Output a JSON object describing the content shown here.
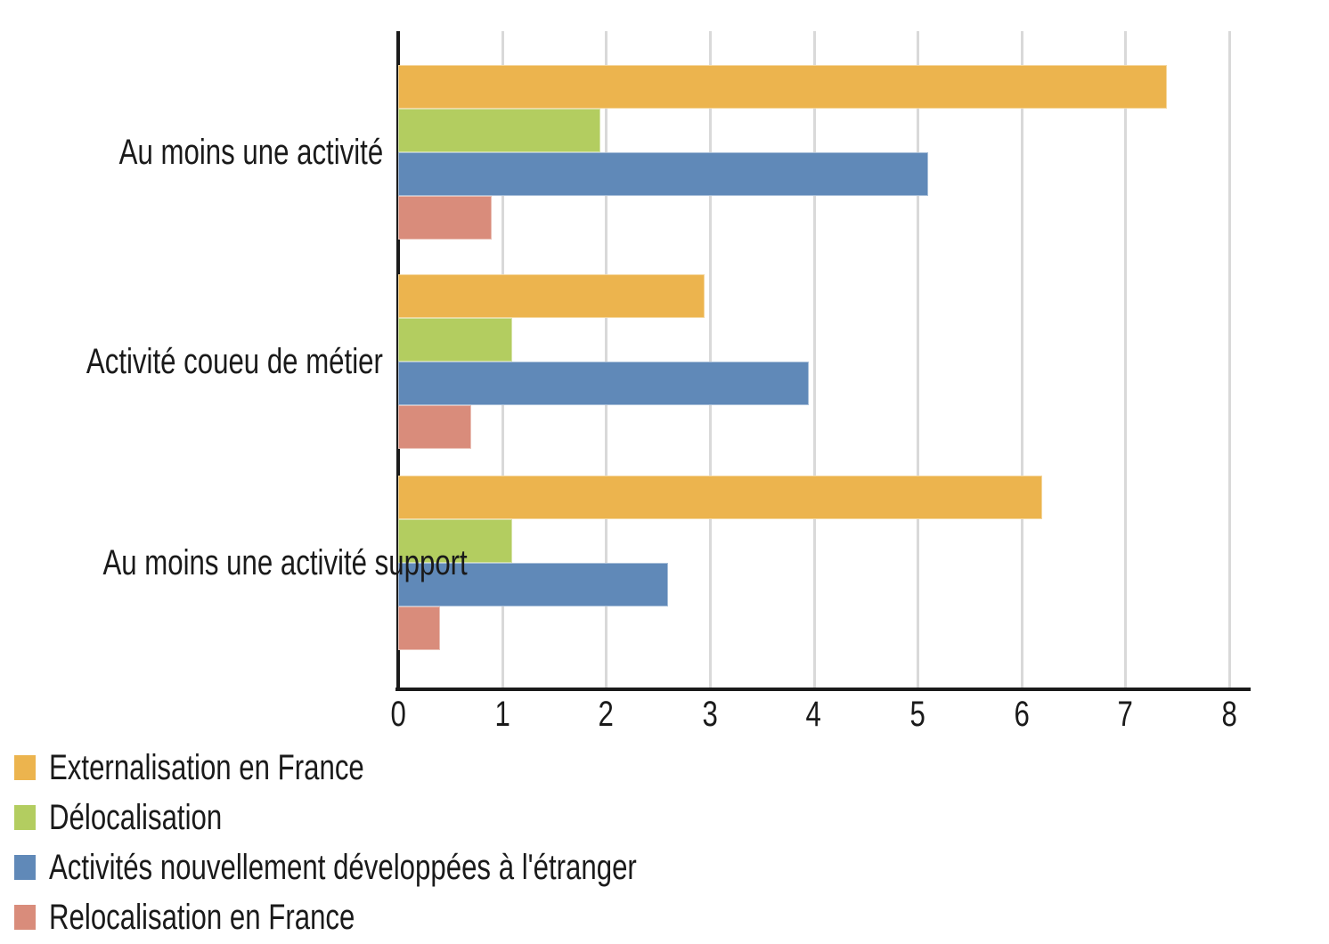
{
  "chart_data": {
    "type": "bar",
    "orientation": "horizontal",
    "title": "",
    "xlabel": "",
    "ylabel": "",
    "categories": [
      "Au moins une activité",
      "Activité coueu de métier",
      "Au moins une activité support"
    ],
    "series": [
      {
        "name": "Externalisation en France",
        "color": "#ecb44e",
        "values": [
          7.4,
          2.95,
          6.2
        ]
      },
      {
        "name": "Délocalisation",
        "color": "#b3cd60",
        "values": [
          1.95,
          1.1,
          1.1
        ]
      },
      {
        "name": "Activités nouvellement développées à l'étranger",
        "color": "#6089b8",
        "values": [
          5.1,
          3.95,
          2.6
        ]
      },
      {
        "name": "Relocalisation en France",
        "color": "#d98c7b",
        "values": [
          0.9,
          0.7,
          0.4
        ]
      }
    ],
    "xlim": [
      0,
      8
    ],
    "x_ticks": [
      "0",
      "1",
      "2",
      "3",
      "4",
      "5",
      "6",
      "7",
      "8"
    ],
    "grid": true,
    "grid_color": "#d9d9d9",
    "axis_color": "#1a1a1a",
    "legend_position": "bottom-left"
  }
}
